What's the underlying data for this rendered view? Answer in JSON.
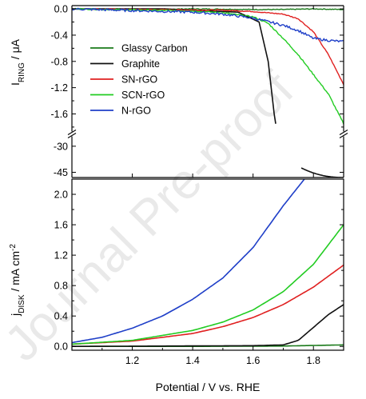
{
  "watermark": "Journal Pre-proof",
  "chart_data": [
    {
      "type": "line",
      "panel": "ring",
      "ylabel_main": "I",
      "ylabel_sub": "RING",
      "ylabel_unit": " / μA",
      "ylim_upper": [
        -1.85,
        0.05
      ],
      "ylim_lower": [
        -48,
        -25
      ],
      "yticks_upper": [
        "0.0",
        "-0.4",
        "-0.8",
        "-1.2",
        "-1.6"
      ],
      "yticks_lower": [
        "-30",
        "-45"
      ],
      "legend_position": "top-left",
      "legend": [
        "Glassy Carbon",
        "Graphite",
        "SN-rGO",
        "SCN-rGO",
        "N-rGO"
      ],
      "series": [
        {
          "name": "Glassy Carbon",
          "color": "#1a7a1a",
          "x": [
            1.0,
            1.2,
            1.4,
            1.6,
            1.7,
            1.8,
            1.9
          ],
          "y": [
            0.0,
            -0.01,
            0.0,
            -0.01,
            -0.01,
            0.0,
            -0.01
          ]
        },
        {
          "name": "Graphite",
          "color": "#111111",
          "x": [
            1.0,
            1.3,
            1.55,
            1.62,
            1.65,
            1.67,
            1.675,
            1.76,
            1.8,
            1.86,
            1.9
          ],
          "y": [
            0.0,
            0.0,
            -0.05,
            -0.2,
            -0.8,
            -1.6,
            -1.75,
            -42.5,
            -45.5,
            -47.5,
            -48
          ]
        },
        {
          "name": "SN-rGO",
          "color": "#e02020",
          "x": [
            1.0,
            1.5,
            1.6,
            1.7,
            1.75,
            1.8,
            1.85,
            1.9
          ],
          "y": [
            0.0,
            -0.02,
            -0.04,
            -0.08,
            -0.15,
            -0.35,
            -0.7,
            -1.15
          ]
        },
        {
          "name": "SCN-rGO",
          "color": "#22cc22",
          "x": [
            1.0,
            1.4,
            1.5,
            1.6,
            1.65,
            1.7,
            1.75,
            1.8,
            1.85,
            1.9
          ],
          "y": [
            0.0,
            -0.03,
            -0.06,
            -0.12,
            -0.22,
            -0.45,
            -0.7,
            -1.0,
            -1.3,
            -1.75
          ]
        },
        {
          "name": "N-rGO",
          "color": "#1f3fc8",
          "x": [
            1.0,
            1.4,
            1.5,
            1.6,
            1.7,
            1.75,
            1.8,
            1.85,
            1.9
          ],
          "y": [
            0.0,
            -0.05,
            -0.08,
            -0.14,
            -0.25,
            -0.33,
            -0.45,
            -0.48,
            -0.5
          ]
        }
      ]
    },
    {
      "type": "line",
      "panel": "disk",
      "xlabel": "Potential / V vs. RHE",
      "ylabel_main": "j",
      "ylabel_sub": "DISK",
      "ylabel_unit": " / mA cm",
      "ylabel_sup": "-2",
      "xlim": [
        1.0,
        1.9
      ],
      "ylim": [
        -0.05,
        2.2
      ],
      "xticks": [
        "1.2",
        "1.4",
        "1.6",
        "1.8"
      ],
      "yticks": [
        "0.0",
        "0.4",
        "0.8",
        "1.2",
        "1.6",
        "2.0"
      ],
      "series": [
        {
          "name": "Glassy Carbon",
          "color": "#1a7a1a",
          "x": [
            1.0,
            1.4,
            1.7,
            1.9
          ],
          "y": [
            0.0,
            0.0,
            0.005,
            0.02
          ]
        },
        {
          "name": "Graphite",
          "color": "#111111",
          "x": [
            1.0,
            1.6,
            1.7,
            1.75,
            1.8,
            1.85,
            1.9
          ],
          "y": [
            0.0,
            0.01,
            0.02,
            0.08,
            0.25,
            0.42,
            0.55
          ]
        },
        {
          "name": "SN-rGO",
          "color": "#e02020",
          "x": [
            1.0,
            1.2,
            1.4,
            1.5,
            1.6,
            1.7,
            1.8,
            1.9
          ],
          "y": [
            0.03,
            0.07,
            0.17,
            0.26,
            0.38,
            0.55,
            0.78,
            1.07
          ]
        },
        {
          "name": "SCN-rGO",
          "color": "#22cc22",
          "x": [
            1.0,
            1.2,
            1.4,
            1.5,
            1.6,
            1.7,
            1.8,
            1.9
          ],
          "y": [
            0.03,
            0.08,
            0.21,
            0.32,
            0.48,
            0.72,
            1.08,
            1.6
          ]
        },
        {
          "name": "N-rGO",
          "color": "#1f3fc8",
          "x": [
            1.0,
            1.1,
            1.2,
            1.3,
            1.4,
            1.5,
            1.6,
            1.7,
            1.77
          ],
          "y": [
            0.05,
            0.12,
            0.24,
            0.4,
            0.62,
            0.9,
            1.3,
            1.85,
            2.2
          ]
        }
      ]
    }
  ]
}
